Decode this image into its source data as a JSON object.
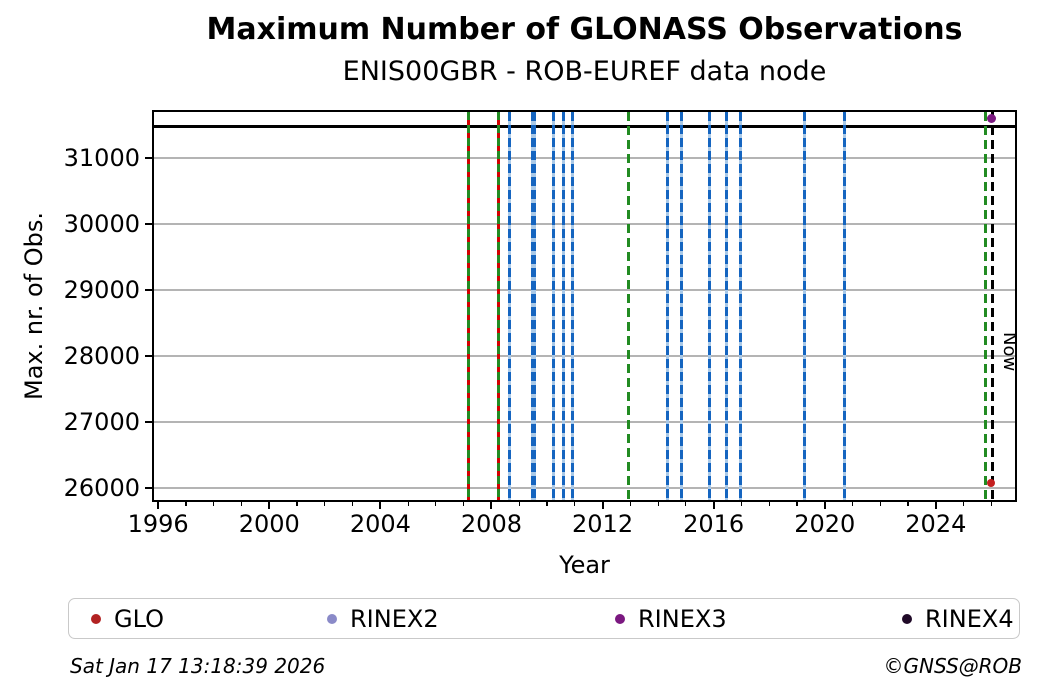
{
  "chart_data": {
    "type": "scatter",
    "title": "Maximum Number of GLONASS Observations",
    "subtitle": "ENIS00GBR - ROB-EUREF data node",
    "xlabel": "Year",
    "ylabel": "Max. nr. of Obs.",
    "xlim": [
      1995.85,
      2026.85
    ],
    "ylim": [
      25820,
      31700
    ],
    "grid": "horizontal-only",
    "xticks": [
      {
        "v": 1996,
        "label": "1996"
      },
      {
        "v": 2000,
        "label": "2000"
      },
      {
        "v": 2004,
        "label": "2004"
      },
      {
        "v": 2008,
        "label": "2008"
      },
      {
        "v": 2012,
        "label": "2012"
      },
      {
        "v": 2016,
        "label": "2016"
      },
      {
        "v": 2020,
        "label": "2020"
      },
      {
        "v": 2024,
        "label": "2024"
      }
    ],
    "minor_xtick_years": {
      "start": 1996,
      "end": 2026,
      "step": 1
    },
    "yticks": [
      {
        "v": 26000,
        "label": "26000"
      },
      {
        "v": 27000,
        "label": "27000"
      },
      {
        "v": 28000,
        "label": "28000"
      },
      {
        "v": 29000,
        "label": "29000"
      },
      {
        "v": 30000,
        "label": "30000"
      },
      {
        "v": 31000,
        "label": "31000"
      }
    ],
    "hline": {
      "value": 31480,
      "color": "#000000"
    },
    "event_lines": [
      {
        "year": 2007.17,
        "style": "redgreen"
      },
      {
        "year": 2008.25,
        "style": "redgreen"
      },
      {
        "year": 2008.66,
        "style": "blue"
      },
      {
        "year": 2009.5,
        "style": "blue",
        "thick": true
      },
      {
        "year": 2010.22,
        "style": "blue"
      },
      {
        "year": 2010.58,
        "style": "blue"
      },
      {
        "year": 2010.9,
        "style": "blue"
      },
      {
        "year": 2012.94,
        "style": "green"
      },
      {
        "year": 2014.34,
        "style": "blue"
      },
      {
        "year": 2014.84,
        "style": "blue"
      },
      {
        "year": 2015.84,
        "style": "blue"
      },
      {
        "year": 2016.45,
        "style": "blue"
      },
      {
        "year": 2016.95,
        "style": "blue"
      },
      {
        "year": 2019.28,
        "style": "blue"
      },
      {
        "year": 2020.71,
        "style": "blue"
      },
      {
        "year": 2025.8,
        "style": "green"
      }
    ],
    "line_colors": {
      "blue_dash": "#1565c0",
      "blue_gap": "#a9c9e8",
      "green_dash": "#228b22",
      "red_dash": "#d40000",
      "now_dash": "#000000"
    },
    "now_line": {
      "year": 2026.05,
      "label": "Now"
    },
    "points": [
      {
        "series": "RINEX3",
        "year": 2026.0,
        "value": 31600,
        "color": "#7b1880",
        "size": 9
      },
      {
        "series": "GLO",
        "year": 2026.0,
        "value": 26075,
        "color": "#c41f1f",
        "size": 8
      }
    ],
    "legend": [
      {
        "label": "GLO",
        "color": "#b22222",
        "offset": 22
      },
      {
        "label": "RINEX2",
        "color": "#8a8ac8",
        "offset": 258
      },
      {
        "label": "RINEX3",
        "color": "#7b1880",
        "offset": 546
      },
      {
        "label": "RINEX4",
        "color": "#200a28",
        "offset": 833
      }
    ]
  },
  "footer": {
    "timestamp": "Sat Jan 17 13:18:39 2026",
    "copyright": "©GNSS@ROB"
  }
}
